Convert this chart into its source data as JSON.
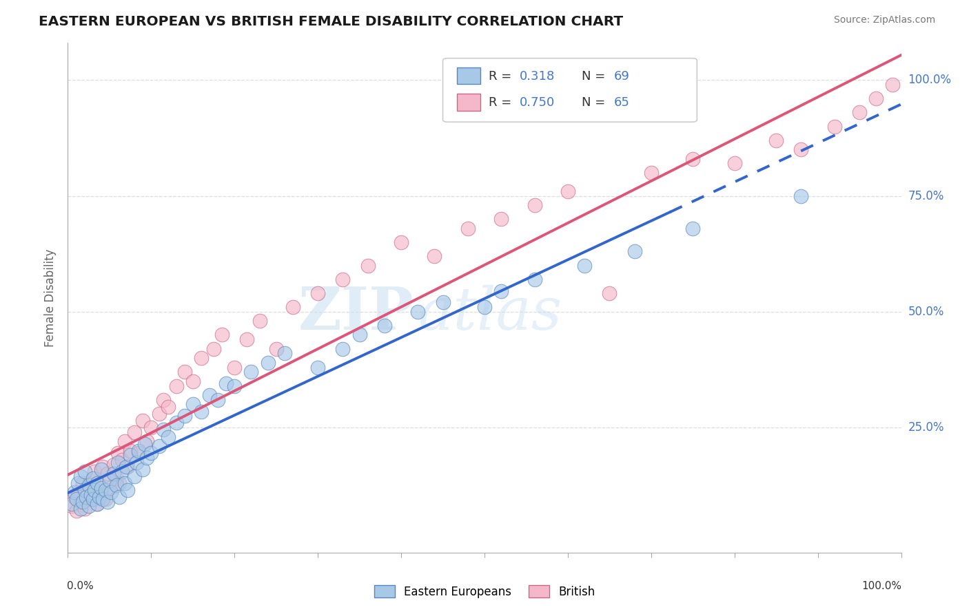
{
  "title": "EASTERN EUROPEAN VS BRITISH FEMALE DISABILITY CORRELATION CHART",
  "source": "Source: ZipAtlas.com",
  "ylabel": "Female Disability",
  "y_tick_labels": [
    "25.0%",
    "50.0%",
    "75.0%",
    "100.0%"
  ],
  "y_tick_positions": [
    0.25,
    0.5,
    0.75,
    1.0
  ],
  "xlim": [
    0.0,
    1.0
  ],
  "ylim": [
    -0.02,
    1.08
  ],
  "blue_R": 0.318,
  "blue_N": 69,
  "pink_R": 0.75,
  "pink_N": 65,
  "blue_marker_color": "#a8c8e8",
  "blue_edge_color": "#5588bb",
  "pink_marker_color": "#f5b8ca",
  "pink_edge_color": "#cc6688",
  "blue_line_color": "#3366cc",
  "pink_line_color": "#dd5577",
  "legend_label_blue": "Eastern Europeans",
  "legend_label_pink": "British",
  "watermark_zip": "ZIP",
  "watermark_atlas": "atlas",
  "stat_label_color": "#333333",
  "stat_value_color": "#4477cc",
  "blue_scatter_x": [
    0.005,
    0.008,
    0.01,
    0.012,
    0.015,
    0.015,
    0.018,
    0.02,
    0.02,
    0.022,
    0.025,
    0.025,
    0.028,
    0.03,
    0.03,
    0.032,
    0.035,
    0.035,
    0.038,
    0.04,
    0.04,
    0.042,
    0.045,
    0.048,
    0.05,
    0.052,
    0.055,
    0.058,
    0.06,
    0.062,
    0.065,
    0.068,
    0.07,
    0.072,
    0.075,
    0.08,
    0.082,
    0.085,
    0.09,
    0.092,
    0.095,
    0.1,
    0.11,
    0.115,
    0.12,
    0.13,
    0.14,
    0.15,
    0.16,
    0.17,
    0.18,
    0.19,
    0.2,
    0.22,
    0.24,
    0.26,
    0.3,
    0.33,
    0.35,
    0.38,
    0.42,
    0.45,
    0.5,
    0.52,
    0.56,
    0.62,
    0.68,
    0.75,
    0.88
  ],
  "blue_scatter_y": [
    0.085,
    0.11,
    0.095,
    0.13,
    0.075,
    0.145,
    0.09,
    0.115,
    0.155,
    0.1,
    0.08,
    0.125,
    0.105,
    0.095,
    0.14,
    0.115,
    0.085,
    0.13,
    0.1,
    0.12,
    0.16,
    0.095,
    0.115,
    0.09,
    0.135,
    0.11,
    0.15,
    0.125,
    0.175,
    0.1,
    0.155,
    0.13,
    0.165,
    0.115,
    0.19,
    0.145,
    0.175,
    0.2,
    0.16,
    0.215,
    0.185,
    0.195,
    0.21,
    0.245,
    0.23,
    0.26,
    0.275,
    0.3,
    0.285,
    0.32,
    0.31,
    0.345,
    0.34,
    0.37,
    0.39,
    0.41,
    0.38,
    0.42,
    0.45,
    0.47,
    0.5,
    0.52,
    0.51,
    0.545,
    0.57,
    0.6,
    0.63,
    0.68,
    0.75
  ],
  "pink_scatter_x": [
    0.005,
    0.008,
    0.01,
    0.012,
    0.015,
    0.018,
    0.02,
    0.022,
    0.025,
    0.028,
    0.03,
    0.032,
    0.035,
    0.038,
    0.04,
    0.042,
    0.045,
    0.048,
    0.05,
    0.055,
    0.058,
    0.06,
    0.062,
    0.065,
    0.068,
    0.072,
    0.075,
    0.08,
    0.085,
    0.09,
    0.095,
    0.1,
    0.11,
    0.115,
    0.12,
    0.13,
    0.14,
    0.15,
    0.16,
    0.175,
    0.185,
    0.2,
    0.215,
    0.23,
    0.25,
    0.27,
    0.3,
    0.33,
    0.36,
    0.4,
    0.44,
    0.48,
    0.52,
    0.56,
    0.6,
    0.65,
    0.7,
    0.75,
    0.8,
    0.85,
    0.88,
    0.92,
    0.95,
    0.97,
    0.99
  ],
  "pink_scatter_y": [
    0.08,
    0.1,
    0.07,
    0.11,
    0.09,
    0.13,
    0.075,
    0.115,
    0.095,
    0.135,
    0.1,
    0.155,
    0.085,
    0.125,
    0.11,
    0.165,
    0.095,
    0.15,
    0.12,
    0.17,
    0.14,
    0.195,
    0.13,
    0.18,
    0.22,
    0.165,
    0.2,
    0.24,
    0.195,
    0.265,
    0.22,
    0.25,
    0.28,
    0.31,
    0.295,
    0.34,
    0.37,
    0.35,
    0.4,
    0.42,
    0.45,
    0.38,
    0.44,
    0.48,
    0.42,
    0.51,
    0.54,
    0.57,
    0.6,
    0.65,
    0.62,
    0.68,
    0.7,
    0.73,
    0.76,
    0.54,
    0.8,
    0.83,
    0.82,
    0.87,
    0.85,
    0.9,
    0.93,
    0.96,
    0.99
  ]
}
